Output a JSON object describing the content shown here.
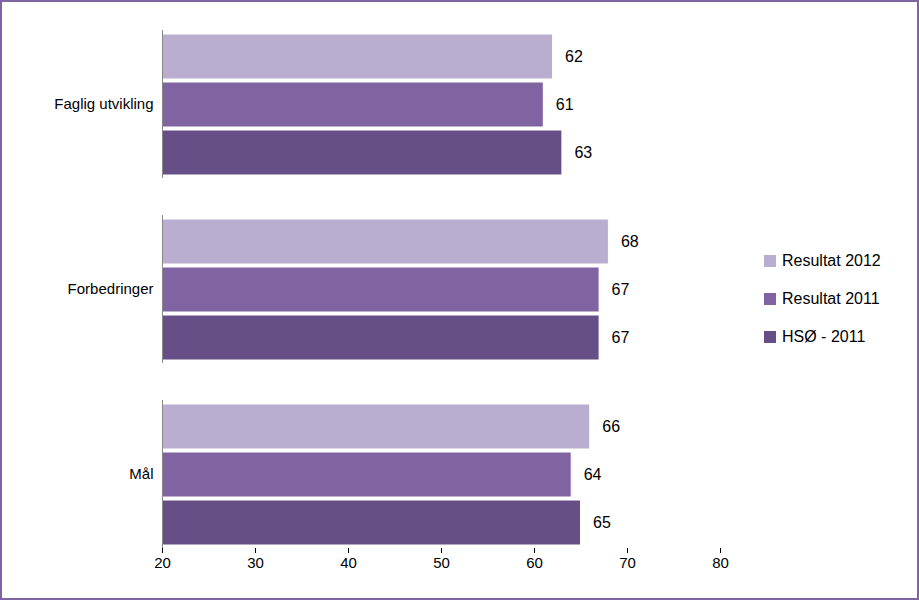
{
  "chart_data": {
    "type": "bar",
    "orientation": "horizontal",
    "categories": [
      "Faglig utvikling",
      "Forbedringer",
      "Mål"
    ],
    "series": [
      {
        "name": "Resultat 2012",
        "color": "#b9aed0",
        "values": [
          62,
          68,
          66
        ]
      },
      {
        "name": "Resultat 2011",
        "color": "#8064a2",
        "values": [
          61,
          67,
          64
        ]
      },
      {
        "name": "HSØ - 2011",
        "color": "#664f86",
        "values": [
          63,
          67,
          65
        ]
      }
    ],
    "xlim": [
      20,
      80
    ],
    "xticks": [
      20,
      30,
      40,
      50,
      60,
      70,
      80
    ],
    "data_labels": true,
    "legend": "right",
    "grid": false
  }
}
